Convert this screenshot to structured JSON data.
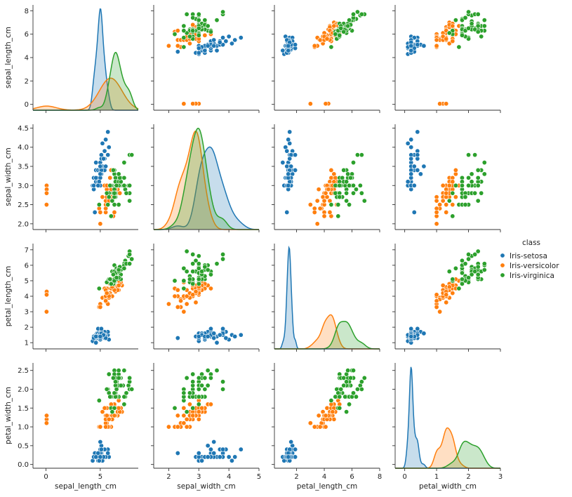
{
  "chart_data": {
    "type": "scatter",
    "subtype": "pairplot",
    "variables": [
      "sepal_length_cm",
      "sepal_width_cm",
      "petal_length_cm",
      "petal_width_cm"
    ],
    "x_ticks": [
      [
        0,
        5
      ],
      [
        2,
        3,
        4,
        5
      ],
      [
        2,
        4,
        6,
        8
      ],
      [
        0,
        1,
        2,
        3
      ]
    ],
    "y_ticks": [
      [
        0,
        2,
        4,
        6,
        8
      ],
      [
        2.0,
        2.5,
        3.0,
        3.5,
        4.0,
        4.5
      ],
      [
        1,
        2,
        3,
        4,
        5,
        6,
        7
      ],
      [
        0.0,
        0.5,
        1.0,
        1.5,
        2.0,
        2.5
      ]
    ],
    "x_tick_labels": [
      [
        "0",
        "5"
      ],
      [
        "2",
        "3",
        "4",
        "5"
      ],
      [
        "2",
        "4",
        "6",
        "8"
      ],
      [
        "0",
        "1",
        "2",
        "3"
      ]
    ],
    "y_tick_labels": [
      [
        "0",
        "2",
        "4",
        "6",
        "8"
      ],
      [
        "2.0",
        "2.5",
        "3.0",
        "3.5",
        "4.0",
        "4.5"
      ],
      [
        "1",
        "2",
        "3",
        "4",
        "5",
        "6",
        "7"
      ],
      [
        "0.0",
        "0.5",
        "1.0",
        "1.5",
        "2.0",
        "2.5"
      ]
    ],
    "xlim": [
      [
        -1.2,
        8.5
      ],
      [
        1.5,
        5.0
      ],
      [
        0.4,
        8.0
      ],
      [
        -0.3,
        3.0
      ]
    ],
    "ylim": [
      [
        -0.5,
        8.5
      ],
      [
        1.85,
        4.6
      ],
      [
        0.6,
        7.4
      ],
      [
        -0.1,
        2.7
      ]
    ],
    "diagonal": "kde",
    "legend": {
      "title": "class",
      "placement": "right"
    },
    "series": [
      {
        "name": "Iris-setosa",
        "color": "#1f77b4",
        "points": [
          [
            5.1,
            3.5,
            1.4,
            0.2
          ],
          [
            4.9,
            3.0,
            1.4,
            0.2
          ],
          [
            4.7,
            3.2,
            1.3,
            0.2
          ],
          [
            4.6,
            3.1,
            1.5,
            0.2
          ],
          [
            5.0,
            3.6,
            1.4,
            0.2
          ],
          [
            5.4,
            3.9,
            1.7,
            0.4
          ],
          [
            4.6,
            3.4,
            1.4,
            0.3
          ],
          [
            5.0,
            3.4,
            1.5,
            0.2
          ],
          [
            4.4,
            2.9,
            1.4,
            0.2
          ],
          [
            4.9,
            3.1,
            1.5,
            0.1
          ],
          [
            5.4,
            3.7,
            1.5,
            0.2
          ],
          [
            4.8,
            3.4,
            1.6,
            0.2
          ],
          [
            4.8,
            3.0,
            1.4,
            0.1
          ],
          [
            4.3,
            3.0,
            1.1,
            0.1
          ],
          [
            5.8,
            4.0,
            1.2,
            0.2
          ],
          [
            5.7,
            4.4,
            1.5,
            0.4
          ],
          [
            5.4,
            3.9,
            1.3,
            0.4
          ],
          [
            5.1,
            3.5,
            1.4,
            0.3
          ],
          [
            5.7,
            3.8,
            1.7,
            0.3
          ],
          [
            5.1,
            3.8,
            1.5,
            0.3
          ],
          [
            5.4,
            3.4,
            1.7,
            0.2
          ],
          [
            5.1,
            3.7,
            1.5,
            0.4
          ],
          [
            4.6,
            3.6,
            1.0,
            0.2
          ],
          [
            5.1,
            3.3,
            1.7,
            0.5
          ],
          [
            4.8,
            3.4,
            1.9,
            0.2
          ],
          [
            5.0,
            3.0,
            1.6,
            0.2
          ],
          [
            5.0,
            3.4,
            1.6,
            0.4
          ],
          [
            5.2,
            3.5,
            1.5,
            0.2
          ],
          [
            5.2,
            3.4,
            1.4,
            0.2
          ],
          [
            4.7,
            3.2,
            1.6,
            0.2
          ],
          [
            4.8,
            3.1,
            1.6,
            0.2
          ],
          [
            5.4,
            3.4,
            1.5,
            0.4
          ],
          [
            5.2,
            4.1,
            1.5,
            0.1
          ],
          [
            5.5,
            4.2,
            1.4,
            0.2
          ],
          [
            4.9,
            3.1,
            1.5,
            0.1
          ],
          [
            5.0,
            3.2,
            1.2,
            0.2
          ],
          [
            5.5,
            3.5,
            1.3,
            0.2
          ],
          [
            4.9,
            3.1,
            1.5,
            0.1
          ],
          [
            4.4,
            3.0,
            1.3,
            0.2
          ],
          [
            5.1,
            3.4,
            1.5,
            0.2
          ],
          [
            5.0,
            3.5,
            1.3,
            0.3
          ],
          [
            4.5,
            2.3,
            1.3,
            0.3
          ],
          [
            4.4,
            3.2,
            1.3,
            0.2
          ],
          [
            5.0,
            3.5,
            1.6,
            0.6
          ],
          [
            5.1,
            3.8,
            1.9,
            0.4
          ],
          [
            4.8,
            3.0,
            1.4,
            0.3
          ],
          [
            5.1,
            3.8,
            1.6,
            0.2
          ],
          [
            4.6,
            3.2,
            1.4,
            0.2
          ],
          [
            5.3,
            3.7,
            1.5,
            0.2
          ],
          [
            5.0,
            3.3,
            1.4,
            0.2
          ]
        ]
      },
      {
        "name": "Iris-versicolor",
        "color": "#ff7f0e",
        "points": [
          [
            7.0,
            3.2,
            4.7,
            1.4
          ],
          [
            6.4,
            3.2,
            4.5,
            1.5
          ],
          [
            6.9,
            3.1,
            4.9,
            1.5
          ],
          [
            5.5,
            2.3,
            4.0,
            1.3
          ],
          [
            6.5,
            2.8,
            4.6,
            1.5
          ],
          [
            5.7,
            2.8,
            4.5,
            1.3
          ],
          [
            6.3,
            3.3,
            4.7,
            1.6
          ],
          [
            4.9,
            2.4,
            3.3,
            1.0
          ],
          [
            6.6,
            2.9,
            4.6,
            1.3
          ],
          [
            5.2,
            2.7,
            3.9,
            1.4
          ],
          [
            5.0,
            2.0,
            3.5,
            1.0
          ],
          [
            5.9,
            3.0,
            4.2,
            1.5
          ],
          [
            6.0,
            2.2,
            4.0,
            1.0
          ],
          [
            6.1,
            2.9,
            4.7,
            1.4
          ],
          [
            5.6,
            2.9,
            3.6,
            1.3
          ],
          [
            6.7,
            3.1,
            4.4,
            1.4
          ],
          [
            5.6,
            3.0,
            4.5,
            1.5
          ],
          [
            5.8,
            2.7,
            4.1,
            1.0
          ],
          [
            6.2,
            2.2,
            4.5,
            1.5
          ],
          [
            5.6,
            2.5,
            3.9,
            1.1
          ],
          [
            5.9,
            3.2,
            4.8,
            1.8
          ],
          [
            6.1,
            2.8,
            4.0,
            1.3
          ],
          [
            6.3,
            2.5,
            4.9,
            1.5
          ],
          [
            6.1,
            2.8,
            4.7,
            1.2
          ],
          [
            6.4,
            2.9,
            4.3,
            1.3
          ],
          [
            6.6,
            3.0,
            4.4,
            1.4
          ],
          [
            6.8,
            2.8,
            4.8,
            1.4
          ],
          [
            6.7,
            3.0,
            5.0,
            1.7
          ],
          [
            6.0,
            2.9,
            4.5,
            1.5
          ],
          [
            5.7,
            2.6,
            3.5,
            1.0
          ],
          [
            5.5,
            2.4,
            3.8,
            1.1
          ],
          [
            5.5,
            2.4,
            3.7,
            1.0
          ],
          [
            5.8,
            2.7,
            3.9,
            1.2
          ],
          [
            6.0,
            2.7,
            5.1,
            1.6
          ],
          [
            5.4,
            3.0,
            4.5,
            1.5
          ],
          [
            6.0,
            3.4,
            4.5,
            1.6
          ],
          [
            6.7,
            3.1,
            4.7,
            1.5
          ],
          [
            6.3,
            2.3,
            4.4,
            1.3
          ],
          [
            5.6,
            3.0,
            4.1,
            1.3
          ],
          [
            5.5,
            2.5,
            4.0,
            1.3
          ],
          [
            5.5,
            2.6,
            4.4,
            1.2
          ],
          [
            6.1,
            3.0,
            4.6,
            1.4
          ],
          [
            5.8,
            2.6,
            4.0,
            1.2
          ],
          [
            5.0,
            2.3,
            3.3,
            1.0
          ],
          [
            5.6,
            2.7,
            4.2,
            1.3
          ],
          [
            0.057,
            3.0,
            4.2,
            1.2
          ],
          [
            0.057,
            2.9,
            4.2,
            1.3
          ],
          [
            0.062,
            2.9,
            4.3,
            1.3
          ],
          [
            0.051,
            2.5,
            3.0,
            1.1
          ],
          [
            0.057,
            2.8,
            4.1,
            1.3
          ]
        ]
      },
      {
        "name": "Iris-virginica",
        "color": "#2ca02c",
        "points": [
          [
            6.3,
            3.3,
            6.0,
            2.5
          ],
          [
            5.8,
            2.7,
            5.1,
            1.9
          ],
          [
            7.1,
            3.0,
            5.9,
            2.1
          ],
          [
            6.3,
            2.9,
            5.6,
            1.8
          ],
          [
            6.5,
            3.0,
            5.8,
            2.2
          ],
          [
            7.6,
            3.0,
            6.6,
            2.1
          ],
          [
            4.9,
            2.5,
            4.5,
            1.7
          ],
          [
            7.3,
            2.9,
            6.3,
            1.8
          ],
          [
            6.7,
            2.5,
            5.8,
            1.8
          ],
          [
            7.2,
            3.6,
            6.1,
            2.5
          ],
          [
            6.5,
            3.2,
            5.1,
            2.0
          ],
          [
            6.4,
            2.7,
            5.3,
            1.9
          ],
          [
            6.8,
            3.0,
            5.5,
            2.1
          ],
          [
            5.7,
            2.5,
            5.0,
            2.0
          ],
          [
            5.8,
            2.8,
            5.1,
            2.4
          ],
          [
            6.4,
            3.2,
            5.3,
            2.3
          ],
          [
            6.5,
            3.0,
            5.5,
            1.8
          ],
          [
            7.7,
            3.8,
            6.7,
            2.2
          ],
          [
            7.7,
            2.6,
            6.9,
            2.3
          ],
          [
            6.0,
            2.2,
            5.0,
            1.5
          ],
          [
            6.9,
            3.2,
            5.7,
            2.3
          ],
          [
            5.6,
            2.8,
            4.9,
            2.0
          ],
          [
            7.7,
            2.8,
            6.7,
            2.0
          ],
          [
            6.3,
            2.7,
            4.9,
            1.8
          ],
          [
            6.7,
            3.3,
            5.7,
            2.1
          ],
          [
            7.2,
            3.2,
            6.0,
            1.8
          ],
          [
            6.2,
            2.8,
            4.8,
            1.8
          ],
          [
            6.1,
            3.0,
            4.9,
            1.8
          ],
          [
            6.4,
            2.8,
            5.6,
            2.1
          ],
          [
            7.2,
            3.0,
            5.8,
            1.6
          ],
          [
            7.4,
            2.8,
            6.1,
            1.9
          ],
          [
            7.9,
            3.8,
            6.4,
            2.0
          ],
          [
            6.4,
            2.8,
            5.6,
            2.2
          ],
          [
            6.3,
            2.8,
            5.1,
            1.5
          ],
          [
            6.1,
            2.6,
            5.6,
            1.4
          ],
          [
            7.7,
            3.0,
            6.1,
            2.3
          ],
          [
            6.3,
            3.4,
            5.6,
            2.4
          ],
          [
            6.4,
            3.1,
            5.5,
            1.8
          ],
          [
            6.0,
            3.0,
            4.8,
            1.8
          ],
          [
            6.9,
            3.1,
            5.4,
            2.1
          ],
          [
            6.7,
            3.1,
            5.6,
            2.4
          ],
          [
            6.9,
            3.1,
            5.1,
            2.3
          ],
          [
            5.8,
            2.7,
            5.1,
            1.9
          ],
          [
            6.8,
            3.2,
            5.9,
            2.3
          ],
          [
            6.7,
            3.3,
            5.7,
            2.5
          ],
          [
            6.7,
            3.0,
            5.2,
            2.3
          ],
          [
            6.3,
            2.5,
            5.0,
            1.9
          ],
          [
            6.5,
            3.0,
            5.2,
            2.0
          ],
          [
            6.2,
            3.4,
            5.4,
            2.3
          ],
          [
            5.9,
            3.0,
            5.1,
            1.8
          ]
        ]
      }
    ]
  }
}
